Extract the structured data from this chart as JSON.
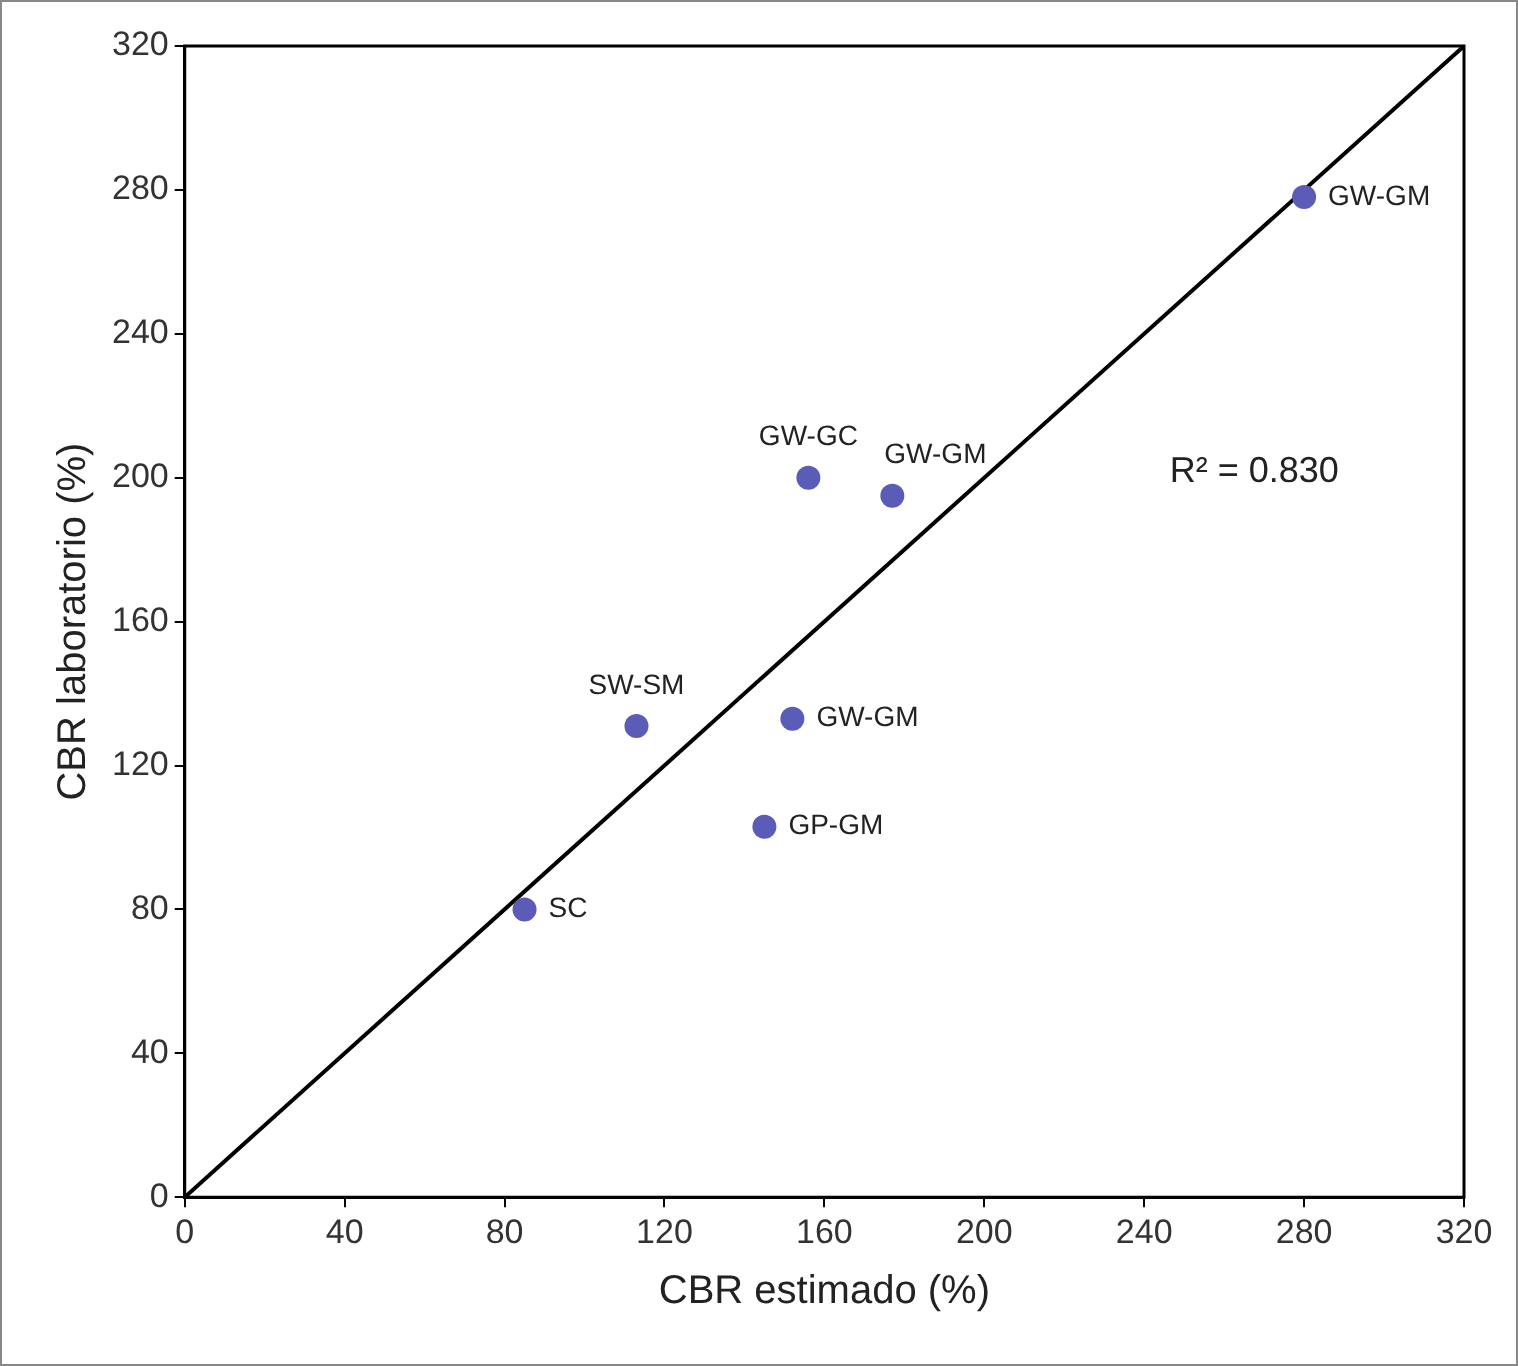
{
  "chart_data": {
    "type": "scatter",
    "xlabel": "CBR estimado (%)",
    "ylabel": "CBR laboratorio (%)",
    "xlim": [
      0,
      320
    ],
    "xticks": [
      0,
      40,
      80,
      120,
      160,
      200,
      240,
      280,
      320
    ],
    "ylim": [
      0,
      320
    ],
    "yticks": [
      0,
      40,
      80,
      120,
      160,
      200,
      240,
      280,
      320
    ],
    "grid": false,
    "legend": false,
    "marker": "circle",
    "series": [
      {
        "color": "#5b5bb8",
        "x": [
          85,
          113,
          145,
          152,
          156,
          177,
          280
        ],
        "values": [
          80,
          131,
          103,
          133,
          200,
          195,
          278
        ]
      },
      {
        "type": "line",
        "color": "#000000",
        "x": [
          0,
          320
        ],
        "values": [
          0,
          320
        ],
        "marker": "none",
        "line_style": "solid"
      }
    ],
    "annotations": [
      {
        "text": "SC",
        "x": 85,
        "y": 80
      },
      {
        "text": "SW-SM",
        "x": 113,
        "y": 131
      },
      {
        "text": "GP-GM",
        "x": 145,
        "y": 103
      },
      {
        "text": "GW-GM",
        "x": 152,
        "y": 133
      },
      {
        "text": "GW-GC",
        "x": 156,
        "y": 200
      },
      {
        "text": "GW-GM",
        "x": 177,
        "y": 195
      },
      {
        "text": "GW-GM",
        "x": 280,
        "y": 278
      },
      "R² = 0.830"
    ]
  }
}
